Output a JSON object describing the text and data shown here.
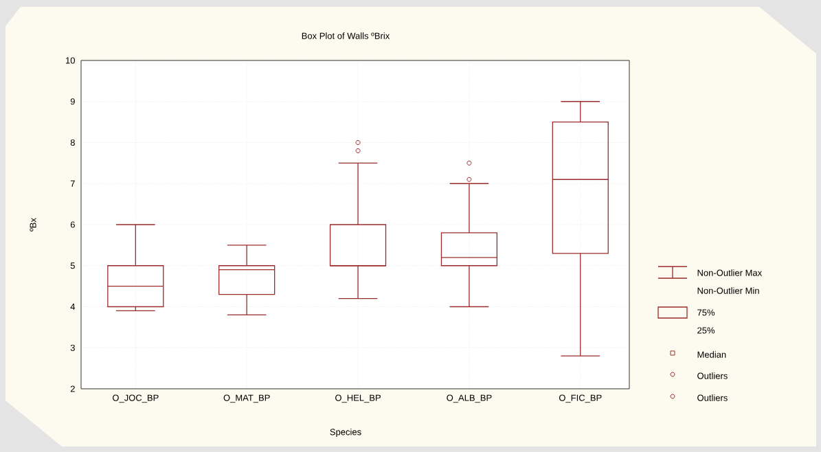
{
  "chart_data": {
    "type": "box",
    "title": "Box Plot of Walls ºBrix",
    "xlabel": "Species",
    "ylabel": "ºBx",
    "categories": [
      "O_JOC_BP",
      "O_MAT_BP",
      "O_HEL_BP",
      "O_ALB_BP",
      "O_FIC_BP"
    ],
    "color": "#9b2b2b",
    "boxes": [
      {
        "low": 3.9,
        "q1": 4.0,
        "median": 4.5,
        "q3": 5.0,
        "high": 6.0
      },
      {
        "low": 3.8,
        "q1": 4.3,
        "median": 4.9,
        "q3": 5.0,
        "high": 5.5
      },
      {
        "low": 4.2,
        "q1": 5.0,
        "median": 5.0,
        "q3": 6.0,
        "high": 7.5,
        "outliers": [
          8.0,
          7.8
        ]
      },
      {
        "low": 4.0,
        "q1": 5.0,
        "median": 5.2,
        "q3": 5.8,
        "high": 7.0,
        "outliers": [
          7.5,
          7.1
        ]
      },
      {
        "low": 2.8,
        "q1": 5.3,
        "median": 7.1,
        "q3": 8.5,
        "high": 9.0
      }
    ],
    "ylim": [
      2,
      10
    ],
    "yticks": [
      2,
      3,
      4,
      5,
      6,
      7,
      8,
      9,
      10
    ],
    "grid": true,
    "annotations": [
      "Non-Outlier Max",
      "Non-Outlier Min",
      "75%",
      "25%",
      "Median",
      "Outliers",
      "Outliers"
    ]
  }
}
